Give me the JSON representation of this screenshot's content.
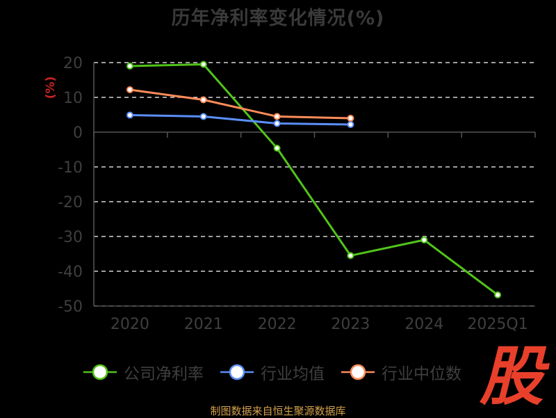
{
  "chart_data": {
    "type": "line",
    "title": "历年净利率变化情况(%)",
    "ylabel": "(%)",
    "categories": [
      "2020",
      "2021",
      "2022",
      "2023",
      "2024",
      "2025Q1"
    ],
    "ylim": [
      -50,
      20
    ],
    "yticks": [
      20,
      10,
      0,
      -10,
      -20,
      -30,
      -40,
      -50
    ],
    "grid": true,
    "legend_position": "bottom",
    "series": [
      {
        "name": "公司净利率",
        "color": "#52c41a",
        "values": [
          19.0,
          19.5,
          -4.6,
          -35.5,
          -31.0,
          -46.8
        ]
      },
      {
        "name": "行业均值",
        "color": "#5b8ff9",
        "values": [
          4.9,
          4.5,
          2.5,
          2.2,
          null,
          null
        ]
      },
      {
        "name": "行业中位数",
        "color": "#ff8c5a",
        "values": [
          12.2,
          9.3,
          4.5,
          4.0,
          null,
          null
        ]
      }
    ]
  },
  "footer": {
    "source": "制图数据来自恒生聚源数据库",
    "logo_char": "股"
  }
}
